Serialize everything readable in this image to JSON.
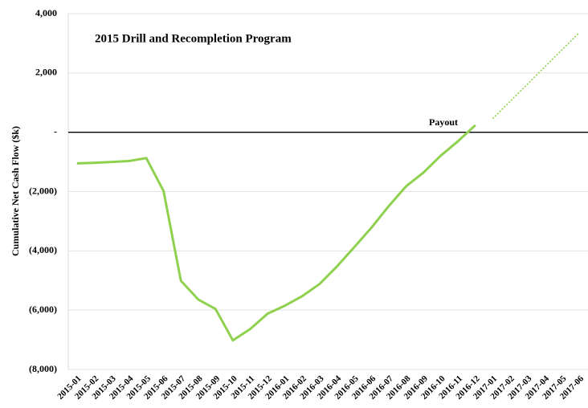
{
  "chart_data": {
    "type": "line",
    "title": "2015 Drill and Recompletion Program",
    "y_label": "Cumulative Net Cash Flow ($k)",
    "annotation": "Payout",
    "categories": [
      "2015-01",
      "2015-02",
      "2015-03",
      "2015-04",
      "2015-05",
      "2015-06",
      "2015-07",
      "2015-08",
      "2015-09",
      "2015-10",
      "2015-11",
      "2015-12",
      "2016-01",
      "2016-02",
      "2016-03",
      "2016-04",
      "2016-05",
      "2016-06",
      "2016-07",
      "2016-08",
      "2016-09",
      "2016-10",
      "2016-11",
      "2016-12",
      "2017-01",
      "2017-02",
      "2017-03",
      "2017-04",
      "2017-05",
      "2017-06"
    ],
    "series": [
      {
        "color": "#8fd14f",
        "style": "solid",
        "values": [
          -1050,
          -1030,
          -1000,
          -970,
          -870,
          -1980,
          -5010,
          -5640,
          -5960,
          -7020,
          -6640,
          -6120,
          -5850,
          -5530,
          -5120,
          -4530,
          -3880,
          -3220,
          -2490,
          -1820,
          -1360,
          -790,
          -300,
          240,
          null,
          null,
          null,
          null,
          null,
          null
        ]
      },
      {
        "color": "#8fd14f",
        "style": "dotted",
        "values": [
          null,
          null,
          null,
          null,
          null,
          null,
          null,
          null,
          null,
          null,
          null,
          null,
          null,
          null,
          null,
          null,
          null,
          null,
          null,
          null,
          null,
          null,
          null,
          null,
          460,
          1040,
          1620,
          2200,
          2780,
          3360
        ]
      }
    ],
    "ylim": [
      -8000,
      4000
    ],
    "yticks": [
      {
        "value": -8000,
        "label": "(8,000)"
      },
      {
        "value": -6000,
        "label": "(6,000)"
      },
      {
        "value": -4000,
        "label": "(4,000)"
      },
      {
        "value": -2000,
        "label": "(2,000)"
      },
      {
        "value": 0,
        "label": "-"
      },
      {
        "value": 2000,
        "label": "2,000"
      },
      {
        "value": 4000,
        "label": "4,000"
      }
    ],
    "grid": true,
    "zero_line": true
  }
}
